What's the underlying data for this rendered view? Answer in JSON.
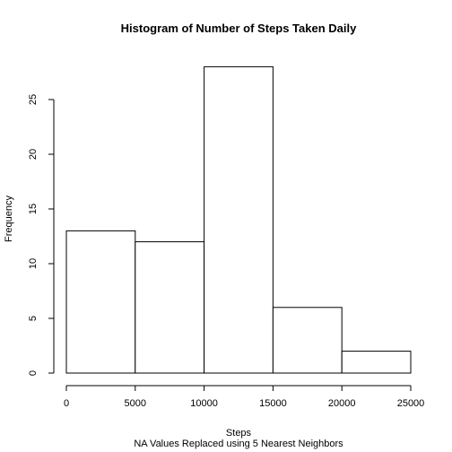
{
  "chart_data": {
    "type": "bar",
    "subtype": "histogram",
    "title": "Histogram of Number of Steps Taken Daily",
    "xlabel": "Steps",
    "sub": "NA Values Replaced using 5 Nearest Neighbors",
    "ylabel": "Frequency",
    "bins": [
      {
        "from": 0,
        "to": 5000,
        "count": 13
      },
      {
        "from": 5000,
        "to": 10000,
        "count": 12
      },
      {
        "from": 10000,
        "to": 15000,
        "count": 28
      },
      {
        "from": 15000,
        "to": 20000,
        "count": 6
      },
      {
        "from": 20000,
        "to": 25000,
        "count": 2
      }
    ],
    "xlim": [
      0,
      25000
    ],
    "ylim": [
      0,
      29
    ],
    "xticks": [
      "0",
      "5000",
      "10000",
      "15000",
      "20000",
      "25000"
    ],
    "yticks": [
      "0",
      "5",
      "10",
      "15",
      "20",
      "25"
    ],
    "grid": false,
    "legend": "none",
    "bar_fill": "#ffffff",
    "bar_stroke": "#000000"
  }
}
